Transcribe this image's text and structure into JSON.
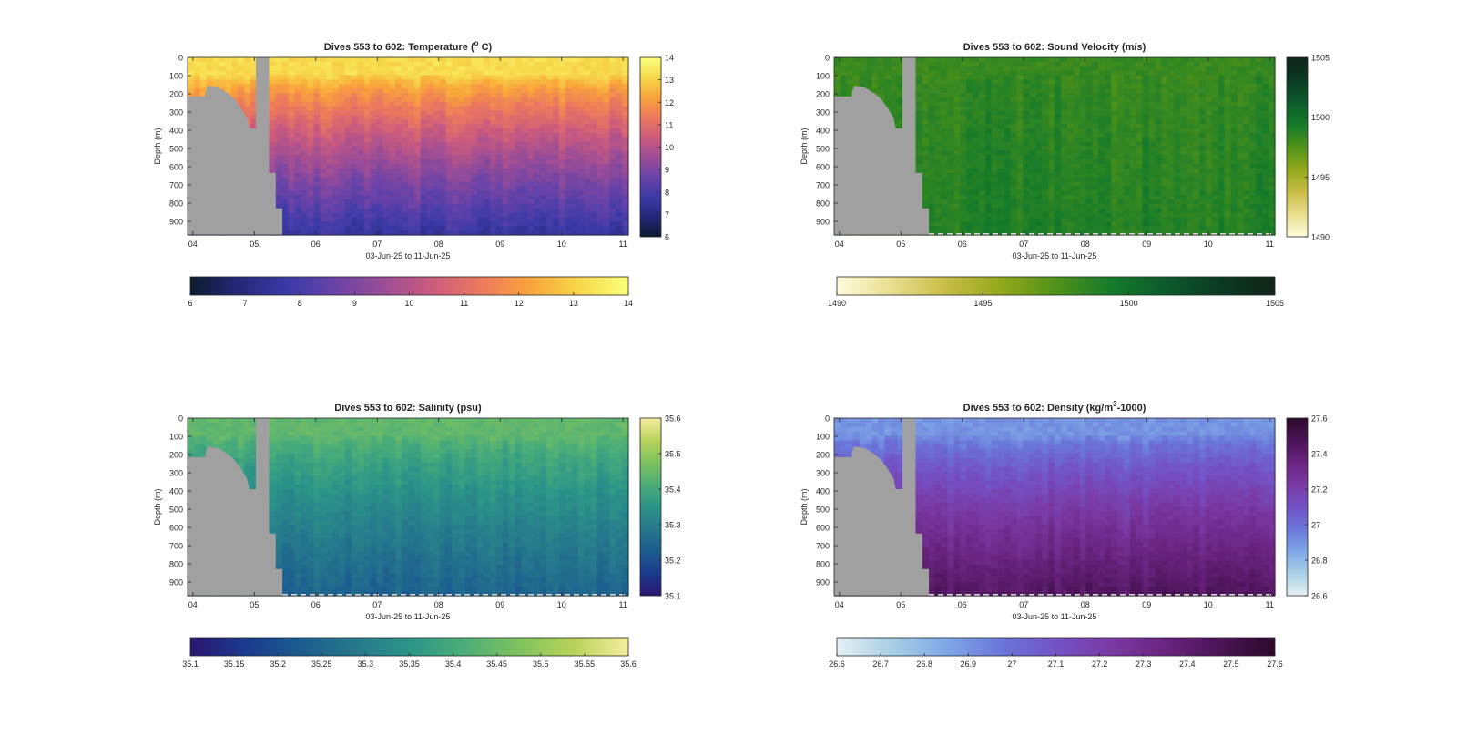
{
  "figure": {
    "panels": [
      {
        "id": "temperature",
        "title_main": "Dives 553 to 602: Temperature (",
        "title_sup": "o",
        "title_tail": " C)",
        "ylabel": "Depth (m)",
        "xlabel": "03-Jun-25 to 11-Jun-25",
        "yticks": [
          "0",
          "100",
          "200",
          "300",
          "400",
          "500",
          "600",
          "700",
          "800",
          "900"
        ],
        "xticks": [
          "04",
          "05",
          "06",
          "07",
          "08",
          "09",
          "10",
          "11"
        ],
        "side_ticks": [
          "6",
          "7",
          "8",
          "9",
          "10",
          "11",
          "12",
          "13",
          "14"
        ],
        "bottom_ticks": [
          "6",
          "7",
          "8",
          "9",
          "10",
          "11",
          "12",
          "13",
          "14"
        ],
        "colormap": [
          "#0c1c2e",
          "#26277a",
          "#3b3aa8",
          "#6a43a8",
          "#9d4d96",
          "#cd5c7c",
          "#ed7a5c",
          "#f9a53a",
          "#f7d84a",
          "#fbff7a"
        ],
        "surface_frac": 0.9,
        "deep_frac": 0.2,
        "striped_bottom": false
      },
      {
        "id": "sound-velocity",
        "title_main": "Dives 553 to 602: Sound Velocity (m/s)",
        "title_sup": "",
        "title_tail": "",
        "ylabel": "Depth (m)",
        "xlabel": "03-Jun-25 to 11-Jun-25",
        "yticks": [
          "0",
          "100",
          "200",
          "300",
          "400",
          "500",
          "600",
          "700",
          "800",
          "900"
        ],
        "xticks": [
          "04",
          "05",
          "06",
          "07",
          "08",
          "09",
          "10",
          "11"
        ],
        "side_ticks": [
          "1490",
          "1495",
          "1500",
          "1505"
        ],
        "bottom_ticks": [
          "1490",
          "1495",
          "1500",
          "1505"
        ],
        "colormap": [
          "#fdfbdc",
          "#e9dd8e",
          "#c8bd46",
          "#93a81a",
          "#4f9219",
          "#157b2a",
          "#0d5a2c",
          "#0b3a24",
          "#102418"
        ],
        "surface_frac": 0.55,
        "deep_frac": 0.6,
        "striped_bottom": true
      },
      {
        "id": "salinity",
        "title_main": "Dives 553 to 602: Salinity (psu)",
        "title_sup": "",
        "title_tail": "",
        "ylabel": "Depth (m)",
        "xlabel": "03-Jun-25 to 11-Jun-25",
        "yticks": [
          "0",
          "100",
          "200",
          "300",
          "400",
          "500",
          "600",
          "700",
          "800",
          "900"
        ],
        "xticks": [
          "04",
          "05",
          "06",
          "07",
          "08",
          "09",
          "10",
          "11"
        ],
        "side_ticks": [
          "35.1",
          "35.2",
          "35.3",
          "35.4",
          "35.5",
          "35.6"
        ],
        "bottom_ticks": [
          "35.1",
          "35.15",
          "35.2",
          "35.25",
          "35.3",
          "35.35",
          "35.4",
          "35.45",
          "35.5",
          "35.55",
          "35.6"
        ],
        "colormap": [
          "#2a1670",
          "#1b3a8e",
          "#1b5c8f",
          "#26788c",
          "#2b9488",
          "#4cae78",
          "#7ec25e",
          "#b8d35a",
          "#f5ed9e"
        ],
        "surface_frac": 0.68,
        "deep_frac": 0.28,
        "striped_bottom": true
      },
      {
        "id": "density",
        "title_main": "Dives 553 to 602: Density (kg/m",
        "title_sup": "3",
        "title_tail": "-1000)",
        "ylabel": "Depth (m)",
        "xlabel": "03-Jun-25 to 11-Jun-25",
        "yticks": [
          "0",
          "100",
          "200",
          "300",
          "400",
          "500",
          "600",
          "700",
          "800",
          "900"
        ],
        "xticks": [
          "04",
          "05",
          "06",
          "07",
          "08",
          "09",
          "10",
          "11"
        ],
        "side_ticks": [
          "26.6",
          "26.8",
          "27",
          "27.2",
          "27.4",
          "27.6"
        ],
        "bottom_ticks": [
          "26.6",
          "26.7",
          "26.8",
          "26.9",
          "27",
          "27.1",
          "27.2",
          "27.3",
          "27.4",
          "27.5",
          "27.6"
        ],
        "colormap": [
          "#e6f0f3",
          "#a9cfe6",
          "#7fa8e6",
          "#6a76da",
          "#7352c6",
          "#7a3aa4",
          "#6a2480",
          "#4a1456",
          "#2c0a2a"
        ],
        "surface_frac": 0.3,
        "deep_frac": 0.85,
        "striped_bottom": true
      }
    ]
  }
}
